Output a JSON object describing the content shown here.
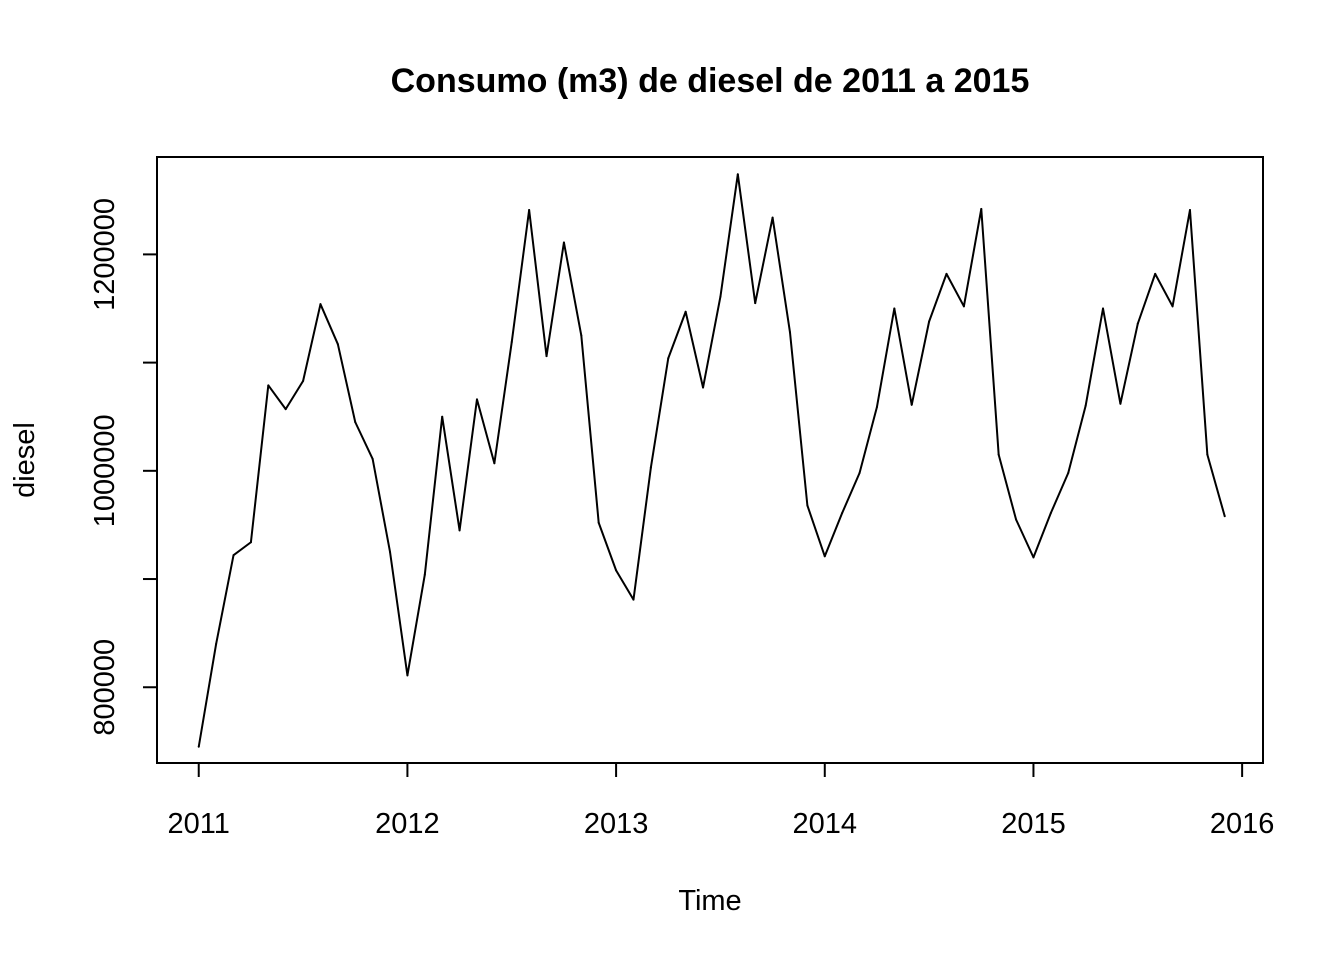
{
  "chart_data": {
    "type": "line",
    "title": "Consumo (m3) de diesel de 2011 a 2015",
    "xlabel": "Time",
    "ylabel": "diesel",
    "xlim": [
      2010.8,
      2016.1
    ],
    "ylim": [
      730000,
      1290000
    ],
    "x_ticks": [
      2011,
      2012,
      2013,
      2014,
      2015,
      2016
    ],
    "x_tick_labels": [
      "2011",
      "2012",
      "2013",
      "2014",
      "2015",
      "2016"
    ],
    "y_ticks": [
      800000,
      900000,
      1000000,
      1100000,
      1200000
    ],
    "y_tick_labels": [
      "800000",
      "",
      "1000000",
      "",
      "1200000"
    ],
    "grid": false,
    "legend": "none",
    "series": [
      {
        "start": 2011,
        "frequency": 12,
        "values": [
          745000,
          840000,
          922000,
          934000,
          1079000,
          1057000,
          1083000,
          1154000,
          1117000,
          1045000,
          1011000,
          925000,
          811000,
          904000,
          1050000,
          945000,
          1066000,
          1007000,
          1119000,
          1241000,
          1106000,
          1211000,
          1125000,
          952000,
          908000,
          881000,
          1003000,
          1104000,
          1147000,
          1077000,
          1161000,
          1274000,
          1155000,
          1234000,
          1128000,
          968000,
          921000,
          961000,
          998000,
          1059000,
          1150000,
          1061000,
          1138000,
          1182000,
          1152000,
          1242000,
          1015000,
          955000,
          920000,
          961000,
          998000,
          1060000,
          1150000,
          1062000,
          1136000,
          1182000,
          1152000,
          1241000,
          1015000,
          958000
        ]
      }
    ]
  },
  "style": {
    "line_color": "#000000",
    "axis_color": "#000000",
    "background": "#ffffff"
  }
}
